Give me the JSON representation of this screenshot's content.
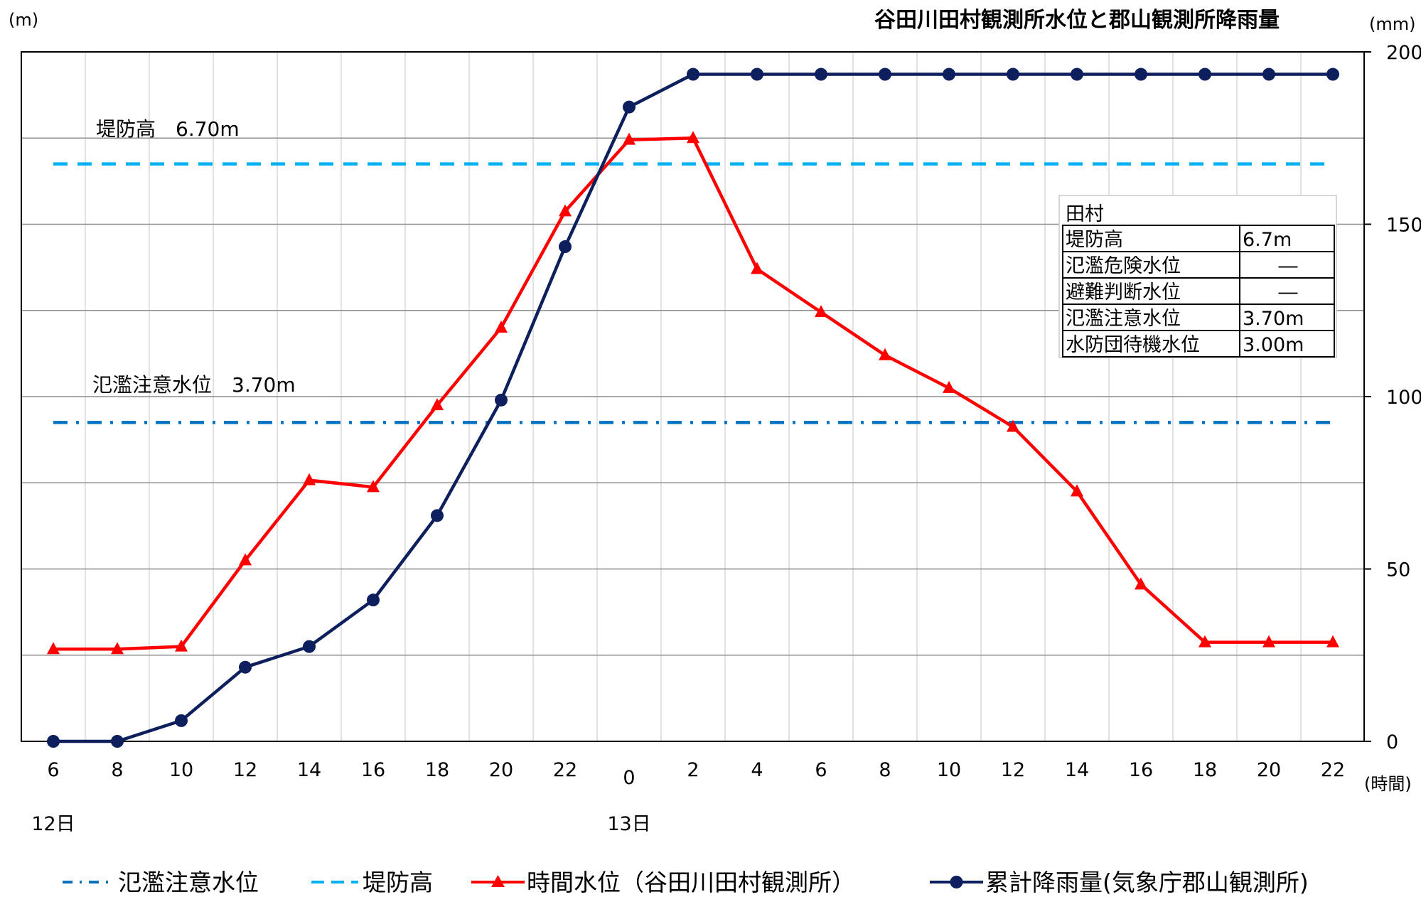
{
  "title": "谷田川田村観測所水位と郡山観測所降雨量",
  "left_unit": "(m)",
  "right_unit": "(mm)",
  "x_unit": "(時間)",
  "annotations": {
    "levee_label": "堤防高　6.70m",
    "caution_label": "氾濫注意水位　3.70m"
  },
  "chart_data": {
    "type": "line",
    "title": "谷田川田村観測所水位と郡山観測所降雨量",
    "categories": [
      "6",
      "8",
      "10",
      "12",
      "14",
      "16",
      "18",
      "20",
      "22",
      "0",
      "2",
      "4",
      "6",
      "8",
      "10",
      "12",
      "14",
      "16",
      "18",
      "20",
      "22"
    ],
    "date_labels": [
      {
        "index": 0,
        "label": "12日"
      },
      {
        "index": 9,
        "label": "13日"
      }
    ],
    "right_axis": {
      "label": "(mm)",
      "ylim": [
        0,
        200
      ],
      "ticks": [
        0,
        50,
        100,
        150,
        200
      ]
    },
    "left_axis": {
      "label": "(m)",
      "ylim": [
        0,
        8
      ],
      "tick_labels_visible": false
    },
    "grid": true,
    "legend_position": "bottom",
    "series": [
      {
        "name": "時間水位（谷田川田村観測所）",
        "axis": "left",
        "color": "#ff0000",
        "marker": "triangle",
        "values": [
          1.07,
          1.07,
          1.1,
          2.1,
          3.03,
          2.95,
          3.9,
          4.8,
          6.15,
          6.98,
          7.0,
          5.48,
          4.98,
          4.48,
          4.1,
          3.65,
          2.9,
          1.82,
          1.15,
          1.15,
          1.15
        ]
      },
      {
        "name": "累計降雨量(気象庁郡山観測所)",
        "axis": "right",
        "color": "#0d1f5c",
        "marker": "circle",
        "values": [
          0,
          0,
          6,
          21.5,
          27.5,
          41,
          65.5,
          99,
          143.5,
          184,
          193.5,
          193.5,
          193.5,
          193.5,
          193.5,
          193.5,
          193.5,
          193.5,
          193.5,
          193.5,
          193.5
        ]
      },
      {
        "name": "氾濫注意水位",
        "axis": "left",
        "color": "#0070c0",
        "style": "dash-dot",
        "constant": 3.7
      },
      {
        "name": "堤防高",
        "axis": "left",
        "color": "#00b0f0",
        "style": "dash",
        "constant": 6.7
      }
    ]
  },
  "table": {
    "header": "田村",
    "rows": [
      {
        "label": "堤防高",
        "value": "6.7m"
      },
      {
        "label": "氾濫危険水位",
        "value": "―"
      },
      {
        "label": "避難判断水位",
        "value": "―"
      },
      {
        "label": "氾濫注意水位",
        "value": "3.70m"
      },
      {
        "label": "水防団待機水位",
        "value": "3.00m"
      }
    ]
  },
  "legend": [
    {
      "label": "氾濫注意水位",
      "color": "#0070c0",
      "style": "dash-dot"
    },
    {
      "label": "堤防高",
      "color": "#00b0f0",
      "style": "dash"
    },
    {
      "label": "時間水位（谷田川田村観測所）",
      "color": "#ff0000",
      "style": "line-triangle"
    },
    {
      "label": "累計降雨量(気象庁郡山観測所)",
      "color": "#0d1f5c",
      "style": "line-circle"
    }
  ]
}
